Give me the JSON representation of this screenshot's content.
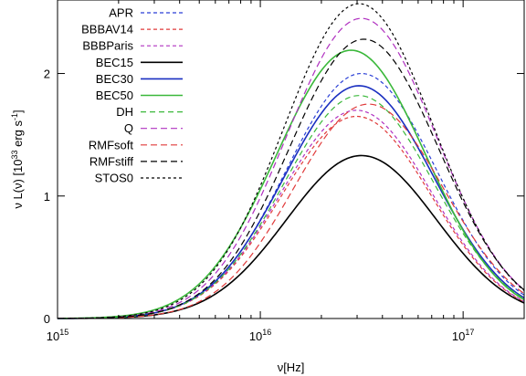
{
  "chart_data": {
    "type": "line",
    "xscale": "log",
    "xlim": [
      1000000000000000.0,
      2e+17
    ],
    "ylim": [
      0,
      2.6
    ],
    "grid": false,
    "legend_position": "top-left",
    "xlabel": {
      "main": "ν[Hz]"
    },
    "ylabel": {
      "pre": "ν L(ν) [10",
      "sup1": "33",
      "mid": " erg s",
      "sup2": "-1",
      "post": "]"
    },
    "x_ticks": [
      {
        "value": 1000000000000000.0,
        "base": "10",
        "exp": "15"
      },
      {
        "value": 1e+16,
        "base": "10",
        "exp": "16"
      },
      {
        "value": 1e+17,
        "base": "10",
        "exp": "17"
      }
    ],
    "y_ticks": [
      {
        "value": 0,
        "label": "0"
      },
      {
        "value": 1,
        "label": "1"
      },
      {
        "value": 2,
        "label": "2"
      }
    ],
    "shape": {
      "logw": 0.37,
      "ls": 0.42
    },
    "series": [
      {
        "name": "APR",
        "color": "#2a3fd6",
        "dash": "4,3",
        "width": 1.2,
        "peak_x": 3.6e+16,
        "peak_y": 2.0
      },
      {
        "name": "BBBAV14",
        "color": "#e03a3a",
        "dash": "4,3",
        "width": 1.2,
        "peak_x": 3.4e+16,
        "peak_y": 1.65
      },
      {
        "name": "BBBParis",
        "color": "#b030c0",
        "dash": "4,3",
        "width": 1.2,
        "peak_x": 3.4e+16,
        "peak_y": 1.7
      },
      {
        "name": "BEC15",
        "color": "#000000",
        "dash": "",
        "width": 1.6,
        "peak_x": 3.6e+16,
        "peak_y": 1.33
      },
      {
        "name": "BEC30",
        "color": "#1a2fc0",
        "dash": "",
        "width": 1.6,
        "peak_x": 3.5e+16,
        "peak_y": 1.9
      },
      {
        "name": "BEC50",
        "color": "#3ab83a",
        "dash": "",
        "width": 1.6,
        "peak_x": 3.2e+16,
        "peak_y": 2.19
      },
      {
        "name": "DH",
        "color": "#3ab83a",
        "dash": "6,4",
        "width": 1.2,
        "peak_x": 3.5e+16,
        "peak_y": 1.82
      },
      {
        "name": "Q",
        "color": "#b030c0",
        "dash": "7,4",
        "width": 1.2,
        "peak_x": 3.6e+16,
        "peak_y": 2.45
      },
      {
        "name": "RMFsoft",
        "color": "#e03a3a",
        "dash": "7,4",
        "width": 1.2,
        "peak_x": 3.9e+16,
        "peak_y": 1.75
      },
      {
        "name": "RMFstiff",
        "color": "#000000",
        "dash": "7,4",
        "width": 1.2,
        "peak_x": 3.7e+16,
        "peak_y": 2.28
      },
      {
        "name": "STOS0",
        "color": "#000000",
        "dash": "3,3",
        "width": 1.2,
        "peak_x": 3.5e+16,
        "peak_y": 2.57
      }
    ]
  }
}
